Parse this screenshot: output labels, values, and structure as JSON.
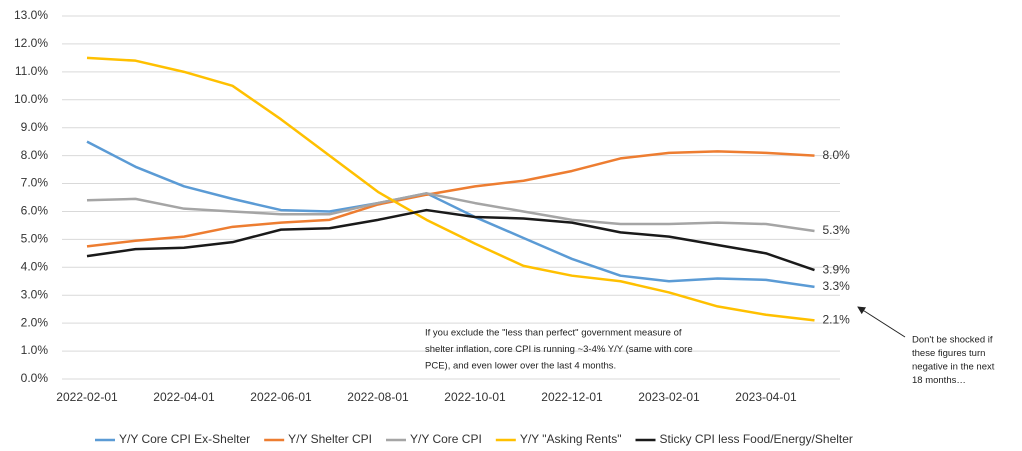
{
  "chart_data": {
    "type": "line",
    "categories": [
      "2022-02-01",
      null,
      "2022-04-01",
      null,
      "2022-06-01",
      null,
      "2022-08-01",
      null,
      "2022-10-01",
      null,
      "2022-12-01",
      null,
      "2023-02-01",
      null,
      "2023-04-01",
      null
    ],
    "series": [
      {
        "name": "Y/Y Core CPI Ex-Shelter",
        "color": "#5b9bd5",
        "values": [
          8.5,
          7.6,
          6.9,
          6.45,
          6.05,
          6.0,
          6.3,
          6.65,
          5.8,
          5.05,
          4.3,
          3.7,
          3.5,
          3.6,
          3.55,
          3.3
        ],
        "value_labels": [
          null,
          null,
          null,
          null,
          null,
          null,
          null,
          null,
          null,
          null,
          null,
          null,
          null,
          null,
          null,
          "3.3%"
        ]
      },
      {
        "name": "Y/Y Shelter CPI",
        "color": "#ed7d31",
        "values": [
          4.75,
          4.95,
          5.1,
          5.45,
          5.6,
          5.7,
          6.25,
          6.6,
          6.9,
          7.1,
          7.45,
          7.9,
          8.1,
          8.15,
          8.1,
          8.0
        ],
        "value_labels": [
          null,
          null,
          null,
          null,
          null,
          null,
          null,
          null,
          null,
          null,
          null,
          null,
          null,
          null,
          null,
          "8.0%"
        ]
      },
      {
        "name": "Y/Y Core CPI",
        "color": "#a5a5a5",
        "values": [
          6.4,
          6.45,
          6.1,
          6.0,
          5.9,
          5.9,
          6.3,
          6.65,
          6.3,
          6.0,
          5.7,
          5.55,
          5.55,
          5.6,
          5.55,
          5.3
        ],
        "value_labels": [
          null,
          null,
          null,
          null,
          null,
          null,
          null,
          null,
          null,
          null,
          null,
          null,
          null,
          null,
          null,
          "5.3%"
        ]
      },
      {
        "name": "Y/Y \"Asking Rents\"",
        "color": "#ffc000",
        "values": [
          11.5,
          11.4,
          11.0,
          10.5,
          9.3,
          8.0,
          6.7,
          5.7,
          4.85,
          4.05,
          3.7,
          3.5,
          3.1,
          2.6,
          2.3,
          2.1
        ],
        "value_labels": [
          null,
          null,
          null,
          null,
          null,
          null,
          null,
          null,
          null,
          null,
          null,
          null,
          null,
          null,
          null,
          "2.1%"
        ]
      },
      {
        "name": "Sticky CPI less Food/Energy/Shelter",
        "color": "#1a1a1a",
        "values": [
          4.4,
          4.65,
          4.7,
          4.9,
          5.35,
          5.4,
          5.7,
          6.05,
          5.8,
          5.75,
          5.6,
          5.25,
          5.1,
          4.8,
          4.5,
          3.9
        ],
        "value_labels": [
          null,
          null,
          null,
          null,
          null,
          null,
          null,
          null,
          null,
          null,
          null,
          null,
          null,
          null,
          null,
          "3.9%"
        ]
      }
    ],
    "ylim": [
      0,
      13
    ],
    "yticks": [
      {
        "value": 0,
        "label": "0.0%"
      },
      {
        "value": 1,
        "label": "1.0%"
      },
      {
        "value": 2,
        "label": "2.0%"
      },
      {
        "value": 3,
        "label": "3.0%"
      },
      {
        "value": 4,
        "label": "4.0%"
      },
      {
        "value": 5,
        "label": "5.0%"
      },
      {
        "value": 6,
        "label": "6.0%"
      },
      {
        "value": 7,
        "label": "7.0%"
      },
      {
        "value": 8,
        "label": "8.0%"
      },
      {
        "value": 9,
        "label": "9.0%"
      },
      {
        "value": 10,
        "label": "10.0%"
      },
      {
        "value": 11,
        "label": "11.0%"
      },
      {
        "value": 12,
        "label": "12.0%"
      },
      {
        "value": 13,
        "label": "13.0%"
      }
    ],
    "grid": true,
    "legend": "bottom",
    "annotations": [
      {
        "lines": [
          "If you exclude the \"less than perfect\" government measure of",
          "shelter inflation, core CPI is running ~3-4% Y/Y (same with core",
          "PCE), and even lower over the last 4 months."
        ]
      },
      {
        "lines": [
          "Don't be shocked if",
          "these figures turn",
          "negative in the next",
          "18 months…"
        ]
      }
    ]
  }
}
